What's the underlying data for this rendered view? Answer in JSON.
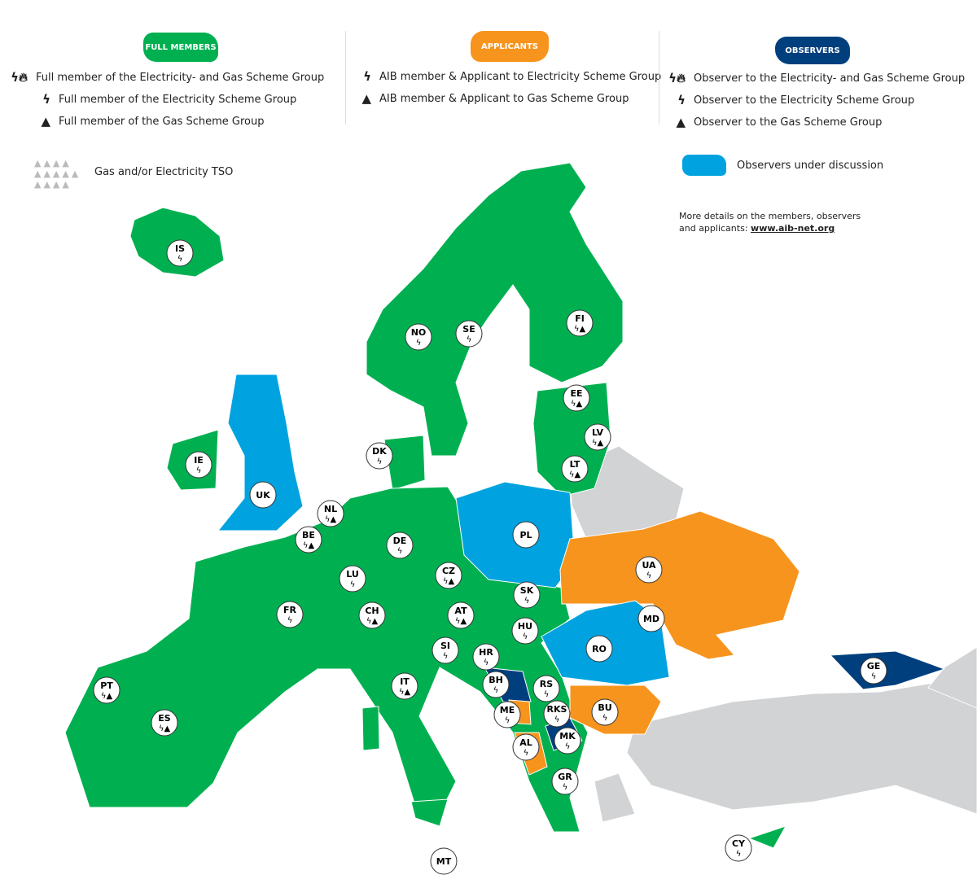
{
  "colors": {
    "full_member": "#00b050",
    "applicant": "#f7941d",
    "observer": "#003f7d",
    "observer_under_discussion": "#00a3e0",
    "tso": "#d1d3d4"
  },
  "legend": {
    "full_members": {
      "title": "FULL MEMBERS",
      "items": [
        {
          "icons": "electricity-gas",
          "label": "Full member of the Electricity- and Gas Scheme Group"
        },
        {
          "icons": "electricity",
          "label": "Full member of the Electricity Scheme Group"
        },
        {
          "icons": "gas",
          "label": "Full member of the Gas Scheme Group"
        }
      ]
    },
    "applicants": {
      "title": "APPLICANTS",
      "items": [
        {
          "icons": "electricity",
          "label": "AIB member & Applicant to Electricity Scheme Group"
        },
        {
          "icons": "gas",
          "label": "AIB member & Applicant to Gas Scheme Group"
        }
      ]
    },
    "observers": {
      "title": "OBSERVERS",
      "items": [
        {
          "icons": "electricity-gas",
          "label": "Observer to the Electricity- and Gas Scheme Group"
        },
        {
          "icons": "electricity",
          "label": "Observer to the Electricity Scheme Group"
        },
        {
          "icons": "gas",
          "label": "Observer to the Gas Scheme Group"
        }
      ]
    },
    "tso": {
      "label": "Gas and/or Electricity TSO"
    },
    "under_discussion": {
      "label": "Observers under discussion"
    }
  },
  "note": {
    "text1": "More details on the members, observers",
    "text2": "and applicants: ",
    "link": "www.aib-net.org"
  },
  "countries": [
    {
      "code": "IS",
      "icons": "e"
    },
    {
      "code": "NO",
      "icons": "e"
    },
    {
      "code": "SE",
      "icons": "e"
    },
    {
      "code": "FI",
      "icons": "eg"
    },
    {
      "code": "EE",
      "icons": "eg"
    },
    {
      "code": "LV",
      "icons": "eg"
    },
    {
      "code": "LT",
      "icons": "eg"
    },
    {
      "code": "DK",
      "icons": "e"
    },
    {
      "code": "IE",
      "icons": "e"
    },
    {
      "code": "UK",
      "icons": ""
    },
    {
      "code": "NL",
      "icons": "eg"
    },
    {
      "code": "BE",
      "icons": "eg"
    },
    {
      "code": "DE",
      "icons": "e"
    },
    {
      "code": "LU",
      "icons": "e"
    },
    {
      "code": "PL",
      "icons": ""
    },
    {
      "code": "CZ",
      "icons": "eg"
    },
    {
      "code": "SK",
      "icons": "e"
    },
    {
      "code": "UA",
      "icons": "e"
    },
    {
      "code": "FR",
      "icons": "e"
    },
    {
      "code": "CH",
      "icons": "eg"
    },
    {
      "code": "AT",
      "icons": "eg"
    },
    {
      "code": "HU",
      "icons": "e"
    },
    {
      "code": "MD",
      "icons": ""
    },
    {
      "code": "RO",
      "icons": ""
    },
    {
      "code": "SI",
      "icons": "e"
    },
    {
      "code": "HR",
      "icons": "e"
    },
    {
      "code": "BH",
      "icons": "e"
    },
    {
      "code": "RS",
      "icons": "e"
    },
    {
      "code": "PT",
      "icons": "eg"
    },
    {
      "code": "ES",
      "icons": "eg"
    },
    {
      "code": "IT",
      "icons": "eg"
    },
    {
      "code": "ME",
      "icons": "e"
    },
    {
      "code": "RKS",
      "icons": "e"
    },
    {
      "code": "BU",
      "icons": "e"
    },
    {
      "code": "GE",
      "icons": "e"
    },
    {
      "code": "AL",
      "icons": "e"
    },
    {
      "code": "MK",
      "icons": "e"
    },
    {
      "code": "GR",
      "icons": "e"
    },
    {
      "code": "MT",
      "icons": ""
    },
    {
      "code": "CY",
      "icons": "e"
    }
  ]
}
